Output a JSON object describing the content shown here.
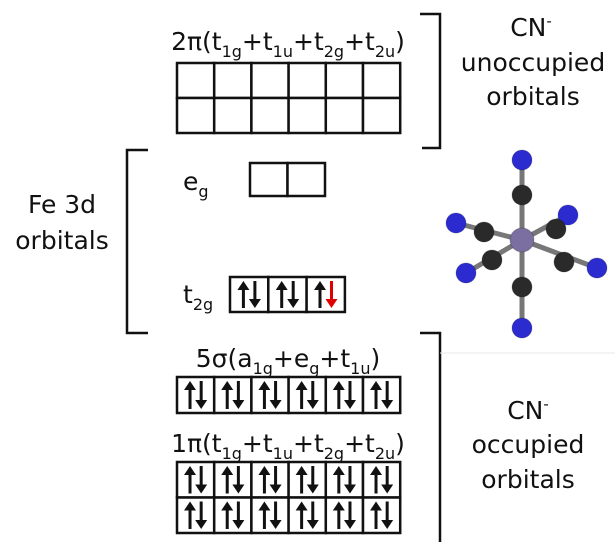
{
  "unoccupied": {
    "label": [
      {
        "text": "2π(t",
        "sub": "1g"
      },
      {
        "text": "+t",
        "sub": "1u"
      },
      {
        "text": "+t",
        "sub": "2g"
      },
      {
        "text": "+t",
        "sub": "2u"
      },
      {
        "text": ")"
      }
    ],
    "species": {
      "text": "CN",
      "sup": "-"
    },
    "lines": [
      "unoccupied",
      "orbitals"
    ]
  },
  "fe3d": {
    "lines": [
      "Fe 3d",
      "orbitals"
    ],
    "eg": [
      {
        "text": "e",
        "sub": "g"
      }
    ],
    "t2g": [
      {
        "text": "t",
        "sub": "2g"
      }
    ]
  },
  "occupied": {
    "sigma": [
      {
        "text": "5σ(a",
        "sub": "1g"
      },
      {
        "text": "+e",
        "sub": "g"
      },
      {
        "text": "+t",
        "sub": "1u"
      },
      {
        "text": ")"
      }
    ],
    "pi": [
      {
        "text": "1π(t",
        "sub": "1g"
      },
      {
        "text": "+t",
        "sub": "1u"
      },
      {
        "text": "+t",
        "sub": "2g"
      },
      {
        "text": "+t",
        "sub": "2u"
      },
      {
        "text": ")"
      }
    ],
    "species": {
      "text": "CN",
      "sup": "-"
    },
    "lines": [
      "occupied",
      "orbitals"
    ]
  }
}
